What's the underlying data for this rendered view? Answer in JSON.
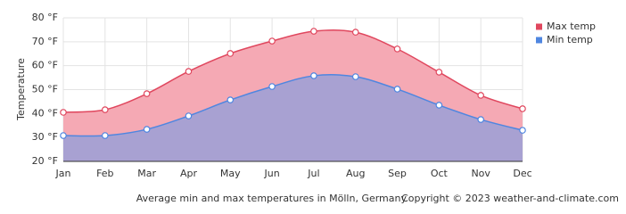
{
  "chart_data": {
    "type": "line",
    "categories": [
      "Jan",
      "Feb",
      "Mar",
      "Apr",
      "May",
      "Jun",
      "Jul",
      "Aug",
      "Sep",
      "Oct",
      "Nov",
      "Dec"
    ],
    "series": [
      {
        "name": "Max temp",
        "color": "#e0475e",
        "fill": "#f5a9b4",
        "values": [
          40.5,
          41.6,
          48.3,
          57.6,
          65.1,
          70.3,
          74.4,
          74.0,
          67.0,
          57.3,
          47.6,
          42.0
        ]
      },
      {
        "name": "Min temp",
        "color": "#4f86e0",
        "fill": "#a8a1d2",
        "values": [
          30.8,
          30.8,
          33.4,
          39.0,
          45.7,
          51.3,
          55.8,
          55.4,
          50.2,
          43.5,
          37.5,
          33.0
        ]
      }
    ],
    "ylabel": "Temperature",
    "ylim": [
      20,
      80
    ],
    "yticks": [
      {
        "value": 20,
        "label": "20 °F"
      },
      {
        "value": 30,
        "label": "30 °F"
      },
      {
        "value": 40,
        "label": "40 °F"
      },
      {
        "value": 50,
        "label": "50 °F"
      },
      {
        "value": 60,
        "label": "60 °F"
      },
      {
        "value": 70,
        "label": "70 °F"
      },
      {
        "value": 80,
        "label": "80 °F"
      }
    ],
    "grid": true,
    "legend": "right",
    "caption": "Average min and max temperatures in Mölln, Germany",
    "copyright": "Copyright © 2023  weather-and-climate.com"
  }
}
